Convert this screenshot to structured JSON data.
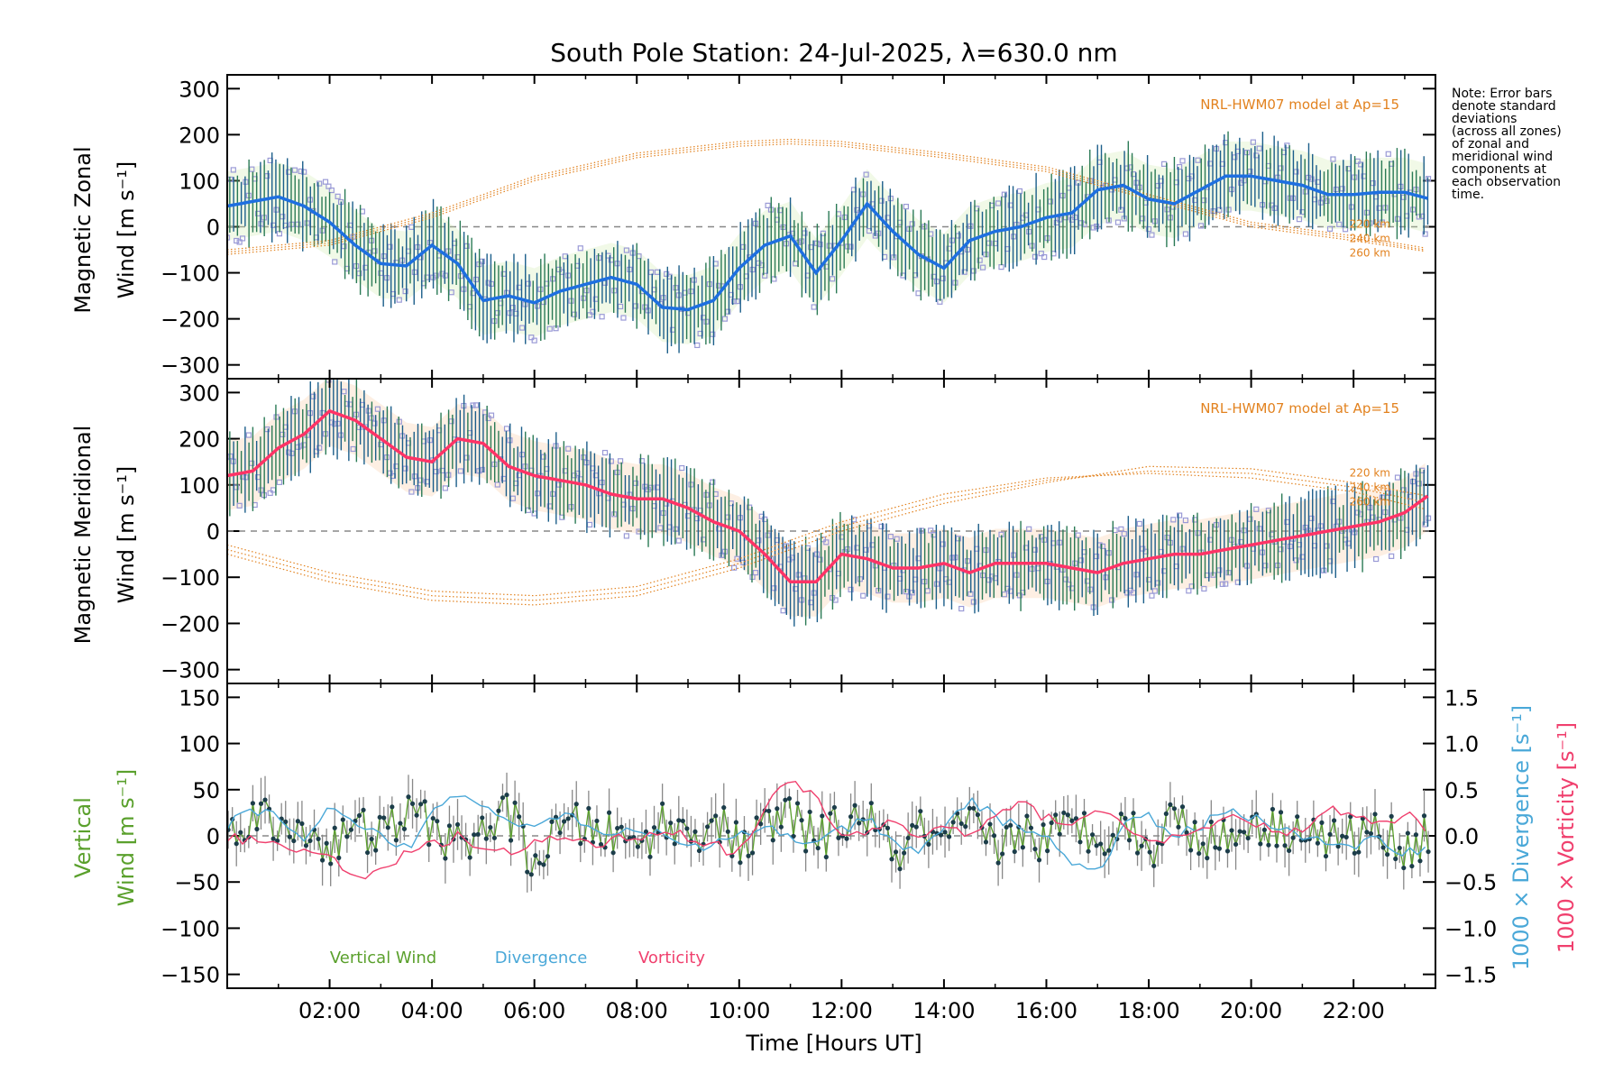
{
  "chart_data": [
    {
      "type": "line",
      "panel": "zonal",
      "title": "South Pole Station: 24-Jul-2025, λ=630.0 nm",
      "ylabel_line1": "Magnetic Zonal",
      "ylabel_line2": "Wind [m s⁻¹]",
      "ylim": [
        -330,
        330
      ],
      "yticks": [
        300,
        200,
        100,
        0,
        -100,
        -200,
        -300
      ],
      "model_label": "NRL-HWM07 model at Ap=15",
      "model_altitudes": [
        "220 km",
        "240 km",
        "260 km"
      ],
      "series": [
        {
          "name": "Mean zonal wind",
          "color": "#1e6fe0",
          "x": [
            0.0,
            0.5,
            1.0,
            1.5,
            2.0,
            2.5,
            3.0,
            3.5,
            4.0,
            4.5,
            5.0,
            5.5,
            6.0,
            6.5,
            7.0,
            7.5,
            8.0,
            8.5,
            9.0,
            9.5,
            10.0,
            10.5,
            11.0,
            11.5,
            12.0,
            12.5,
            13.0,
            13.5,
            14.0,
            14.5,
            15.0,
            15.5,
            16.0,
            16.5,
            17.0,
            17.5,
            18.0,
            18.5,
            19.0,
            19.5,
            20.0,
            20.5,
            21.0,
            21.5,
            22.0,
            22.5,
            23.0,
            23.5
          ],
          "values": [
            45,
            55,
            65,
            45,
            10,
            -40,
            -80,
            -85,
            -40,
            -80,
            -160,
            -150,
            -165,
            -140,
            -125,
            -110,
            -125,
            -175,
            -180,
            -160,
            -90,
            -40,
            -20,
            -100,
            -30,
            50,
            -10,
            -60,
            -90,
            -30,
            -10,
            0,
            20,
            30,
            80,
            90,
            60,
            50,
            80,
            110,
            110,
            100,
            90,
            70,
            70,
            75,
            75,
            60
          ]
        },
        {
          "name": "HWM07 220 km",
          "color": "#e2821f",
          "x": [
            0.0,
            2.0,
            4.0,
            6.0,
            8.0,
            10.0,
            11.0,
            12.0,
            14.0,
            16.0,
            18.0,
            20.0,
            22.0,
            23.5
          ],
          "values": [
            -60,
            -40,
            20,
            100,
            150,
            175,
            180,
            175,
            150,
            120,
            60,
            0,
            -30,
            -55
          ]
        },
        {
          "name": "HWM07 240 km",
          "color": "#e2821f",
          "x": [
            0.0,
            2.0,
            4.0,
            6.0,
            8.0,
            10.0,
            11.0,
            12.0,
            14.0,
            16.0,
            18.0,
            20.0,
            22.0,
            23.5
          ],
          "values": [
            -55,
            -35,
            25,
            105,
            155,
            180,
            185,
            180,
            155,
            125,
            65,
            5,
            -25,
            -52
          ]
        },
        {
          "name": "HWM07 260 km",
          "color": "#e2821f",
          "x": [
            0.0,
            2.0,
            4.0,
            6.0,
            8.0,
            10.0,
            11.0,
            12.0,
            14.0,
            16.0,
            18.0,
            20.0,
            22.0,
            23.5
          ],
          "values": [
            -50,
            -30,
            30,
            110,
            160,
            185,
            190,
            185,
            160,
            130,
            70,
            10,
            -20,
            -48
          ]
        }
      ]
    },
    {
      "type": "line",
      "panel": "meridional",
      "ylabel_line1": "Magnetic Meridional",
      "ylabel_line2": "Wind [m s⁻¹]",
      "ylim": [
        -330,
        330
      ],
      "yticks": [
        300,
        200,
        100,
        0,
        -100,
        -200,
        -300
      ],
      "model_label": "NRL-HWM07 model at Ap=15",
      "model_altitudes": [
        "220 km",
        "240 km",
        "260 km"
      ],
      "series": [
        {
          "name": "Mean meridional wind",
          "color": "#ff3366",
          "x": [
            0.0,
            0.5,
            1.0,
            1.5,
            2.0,
            2.5,
            3.0,
            3.5,
            4.0,
            4.5,
            5.0,
            5.5,
            6.0,
            6.5,
            7.0,
            7.5,
            8.0,
            8.5,
            9.0,
            9.5,
            10.0,
            10.5,
            11.0,
            11.5,
            12.0,
            12.5,
            13.0,
            13.5,
            14.0,
            14.5,
            15.0,
            15.5,
            16.0,
            16.5,
            17.0,
            17.5,
            18.0,
            18.5,
            19.0,
            19.5,
            20.0,
            20.5,
            21.0,
            21.5,
            22.0,
            22.5,
            23.0,
            23.5
          ],
          "values": [
            120,
            130,
            180,
            210,
            260,
            240,
            200,
            160,
            150,
            200,
            190,
            140,
            120,
            110,
            100,
            80,
            70,
            70,
            50,
            20,
            0,
            -50,
            -110,
            -110,
            -50,
            -60,
            -80,
            -80,
            -70,
            -90,
            -70,
            -70,
            -70,
            -80,
            -90,
            -70,
            -60,
            -50,
            -50,
            -40,
            -30,
            -20,
            -10,
            0,
            10,
            20,
            40,
            80
          ]
        },
        {
          "name": "HWM07 220 km",
          "color": "#e2821f",
          "x": [
            0.0,
            2.0,
            4.0,
            6.0,
            8.0,
            10.0,
            12.0,
            14.0,
            16.0,
            18.0,
            20.0,
            22.0,
            23.5
          ],
          "values": [
            -30,
            -90,
            -130,
            -140,
            -120,
            -60,
            20,
            80,
            115,
            125,
            115,
            85,
            45
          ]
        },
        {
          "name": "HWM07 240 km",
          "color": "#e2821f",
          "x": [
            0.0,
            2.0,
            4.0,
            6.0,
            8.0,
            10.0,
            12.0,
            14.0,
            16.0,
            18.0,
            20.0,
            22.0,
            23.5
          ],
          "values": [
            -40,
            -100,
            -140,
            -150,
            -130,
            -70,
            10,
            70,
            110,
            130,
            125,
            95,
            60
          ]
        },
        {
          "name": "HWM07 260 km",
          "color": "#e2821f",
          "x": [
            0.0,
            2.0,
            4.0,
            6.0,
            8.0,
            10.0,
            12.0,
            14.0,
            16.0,
            18.0,
            20.0,
            22.0,
            23.5
          ],
          "values": [
            -50,
            -110,
            -150,
            -160,
            -140,
            -80,
            0,
            60,
            105,
            140,
            135,
            105,
            75
          ]
        }
      ]
    },
    {
      "type": "line",
      "panel": "vertical",
      "ylabel_line1": "Vertical",
      "ylabel_line2": "Wind [m s⁻¹]",
      "ylim": [
        -165,
        165
      ],
      "yticks": [
        150,
        100,
        50,
        0,
        -50,
        -100,
        -150
      ],
      "right_ylim": [
        -1.65,
        1.65
      ],
      "right_yticks": [
        "1.5",
        "1.0",
        "0.5",
        "0.0",
        "−0.5",
        "−1.0",
        "−1.5"
      ],
      "right_ylabel_div": "1000 × Divergence [s⁻¹]",
      "right_ylabel_vort": "1000 × Vorticity [s⁻¹]",
      "xlabel": "Time [Hours UT]",
      "xlim": [
        0,
        23.6
      ],
      "xticks": [
        "02:00",
        "04:00",
        "06:00",
        "08:00",
        "10:00",
        "12:00",
        "14:00",
        "16:00",
        "18:00",
        "20:00",
        "22:00"
      ],
      "xtick_values": [
        2,
        4,
        6,
        8,
        10,
        12,
        14,
        16,
        18,
        20,
        22
      ],
      "legend": [
        "Vertical Wind",
        "Divergence",
        "Vorticity"
      ],
      "series": [
        {
          "name": "Vertical Wind",
          "color": "#5aa02c",
          "axis": "left",
          "x": [
            0.0,
            0.3,
            0.6,
            1.0,
            1.5,
            2.0,
            2.5,
            3.0,
            3.5,
            4.0,
            4.5,
            5.0,
            5.5,
            6.0,
            6.5,
            7.0,
            7.5,
            8.0,
            8.5,
            9.0,
            9.5,
            10.0,
            10.5,
            11.0,
            11.5,
            12.0,
            12.5,
            13.0,
            13.5,
            14.0,
            14.5,
            15.0,
            15.5,
            16.0,
            16.5,
            17.0,
            17.5,
            18.0,
            18.5,
            19.0,
            19.5,
            20.0,
            20.5,
            21.0,
            21.5,
            22.0,
            22.5,
            23.0,
            23.5
          ],
          "values": [
            10,
            30,
            50,
            0,
            20,
            -20,
            10,
            0,
            40,
            20,
            -20,
            10,
            40,
            -50,
            10,
            20,
            0,
            -20,
            25,
            0,
            30,
            -20,
            10,
            40,
            -10,
            20,
            40,
            -40,
            10,
            -20,
            20,
            -20,
            10,
            -10,
            20,
            0,
            30,
            -30,
            40,
            0,
            -10,
            30,
            10,
            20,
            -10,
            0,
            10,
            -20,
            0
          ]
        },
        {
          "name": "Divergence",
          "color": "#4aa8d8",
          "axis": "right",
          "x": [
            0.0,
            0.5,
            1.0,
            1.5,
            2.0,
            2.5,
            3.0,
            3.5,
            4.0,
            4.5,
            5.0,
            5.5,
            6.0,
            6.5,
            7.0,
            7.5,
            8.0,
            8.5,
            9.0,
            9.5,
            10.0,
            10.5,
            11.0,
            11.5,
            12.0,
            12.5,
            13.0,
            13.5,
            14.0,
            14.5,
            15.0,
            15.5,
            16.0,
            16.5,
            17.0,
            17.5,
            18.0,
            18.5,
            19.0,
            19.5,
            20.0,
            20.5,
            21.0,
            21.5,
            22.0,
            22.5,
            23.0,
            23.5
          ],
          "values": [
            0.1,
            0.3,
            0.2,
            -0.1,
            0.3,
            0.1,
            0.0,
            -0.15,
            0.25,
            0.45,
            0.35,
            0.2,
            0.1,
            0.25,
            0.15,
            0.0,
            0.1,
            0.0,
            -0.15,
            -0.1,
            0.0,
            0.1,
            0.0,
            -0.1,
            0.05,
            0.2,
            -0.1,
            -0.2,
            0.1,
            0.4,
            0.2,
            0.1,
            0.0,
            -0.3,
            -0.4,
            0.1,
            0.2,
            0.0,
            0.1,
            0.3,
            0.2,
            0.1,
            0.0,
            -0.1,
            -0.15,
            0.0,
            -0.2,
            -0.1
          ]
        },
        {
          "name": "Vorticity",
          "color": "#f0406e",
          "axis": "right",
          "x": [
            0.0,
            0.5,
            1.0,
            1.5,
            2.0,
            2.5,
            3.0,
            3.5,
            4.0,
            4.5,
            5.0,
            5.5,
            6.0,
            6.5,
            7.0,
            7.5,
            8.0,
            8.5,
            9.0,
            9.5,
            10.0,
            10.5,
            11.0,
            11.5,
            12.0,
            12.5,
            13.0,
            13.5,
            14.0,
            14.5,
            15.0,
            15.5,
            16.0,
            16.5,
            17.0,
            17.5,
            18.0,
            18.5,
            19.0,
            19.5,
            20.0,
            20.5,
            21.0,
            21.5,
            22.0,
            22.5,
            23.0,
            23.5
          ],
          "values": [
            0.0,
            -0.05,
            -0.1,
            -0.15,
            -0.25,
            -0.45,
            -0.35,
            -0.2,
            -0.1,
            0.0,
            -0.15,
            -0.2,
            -0.1,
            0.0,
            -0.1,
            -0.05,
            0.0,
            0.05,
            0.0,
            -0.1,
            -0.2,
            0.3,
            0.6,
            0.4,
            0.0,
            0.05,
            0.15,
            0.0,
            0.1,
            0.0,
            0.2,
            0.35,
            0.2,
            0.15,
            0.3,
            0.1,
            0.0,
            -0.05,
            0.05,
            0.2,
            0.1,
            0.1,
            0.0,
            0.3,
            0.2,
            0.1,
            0.25,
            0.05
          ]
        }
      ]
    }
  ],
  "note": [
    "Note: Error bars",
    "denote standard",
    "deviations",
    "(across all zones)",
    "of zonal and",
    "meridional wind",
    "components at",
    "each observation",
    "time."
  ]
}
